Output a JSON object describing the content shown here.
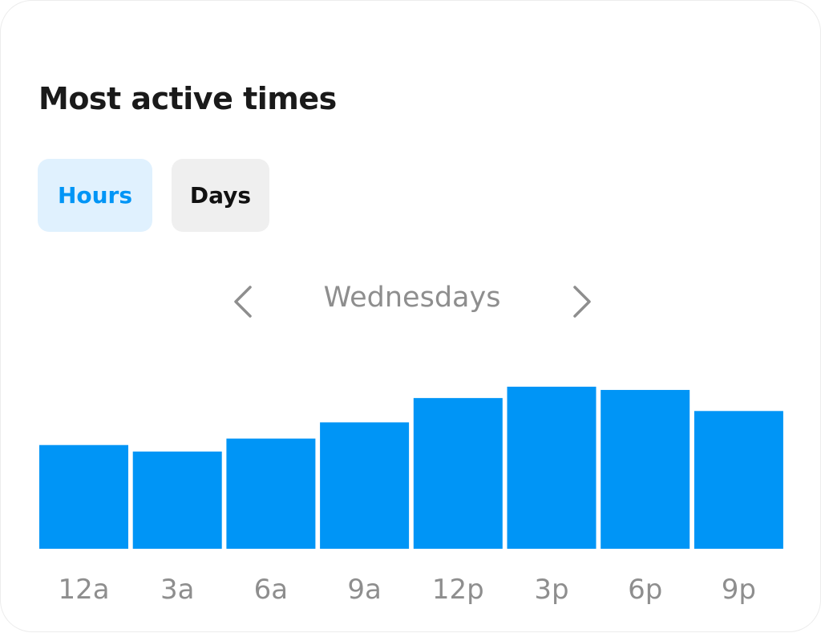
{
  "header": {
    "title": "Most active times"
  },
  "tabs": [
    {
      "label": "Hours",
      "selected": true
    },
    {
      "label": "Days",
      "selected": false
    }
  ],
  "period_nav": {
    "label": "Wednesdays",
    "prev_icon": "chevron-left-icon",
    "next_icon": "chevron-right-icon"
  },
  "colors": {
    "bar": "#0095f6",
    "tab_selected_bg": "#e0f1fe",
    "tab_selected_text": "#0095f6",
    "tab_bg": "#efefef",
    "muted_text": "#8e8e8e"
  },
  "chart_data": {
    "type": "bar",
    "categories": [
      "12a",
      "3a",
      "6a",
      "9a",
      "12p",
      "3p",
      "6p",
      "9p"
    ],
    "values": [
      0.64,
      0.6,
      0.68,
      0.78,
      0.93,
      1.0,
      0.98,
      0.85
    ],
    "ylim": [
      0,
      1
    ],
    "grid": false,
    "title": "",
    "xlabel": "",
    "ylabel": ""
  }
}
